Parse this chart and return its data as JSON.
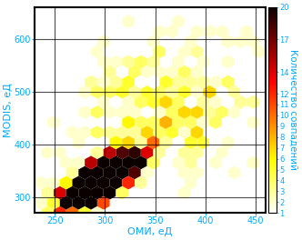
{
  "xlabel": "ОМИ, еД",
  "ylabel": "MODIS, еД",
  "colorbar_label": "Количество совпадений",
  "xlim": [
    230,
    460
  ],
  "ylim": [
    270,
    660
  ],
  "xticks": [
    250,
    300,
    350,
    400,
    450
  ],
  "yticks": [
    300,
    400,
    500,
    600
  ],
  "vmin": 1,
  "vmax": 20,
  "gridsize": 18,
  "seed": 12345,
  "n_main": 1200,
  "n_scatter": 300,
  "n_out": 150,
  "background_color": "#ffffff",
  "axis_color": "#000000",
  "cmap": "hot_r",
  "label_color": "#00aaff",
  "tick_color": "#00aaff",
  "label_fontsize": 8,
  "tick_fontsize": 7,
  "colorbar_tick_fontsize": 6,
  "colorbar_ticks": [
    1,
    2,
    3,
    4,
    5,
    6,
    7,
    8,
    9,
    10,
    11,
    12,
    14,
    17,
    20
  ],
  "figsize": [
    3.32,
    2.64
  ],
  "dpi": 100
}
